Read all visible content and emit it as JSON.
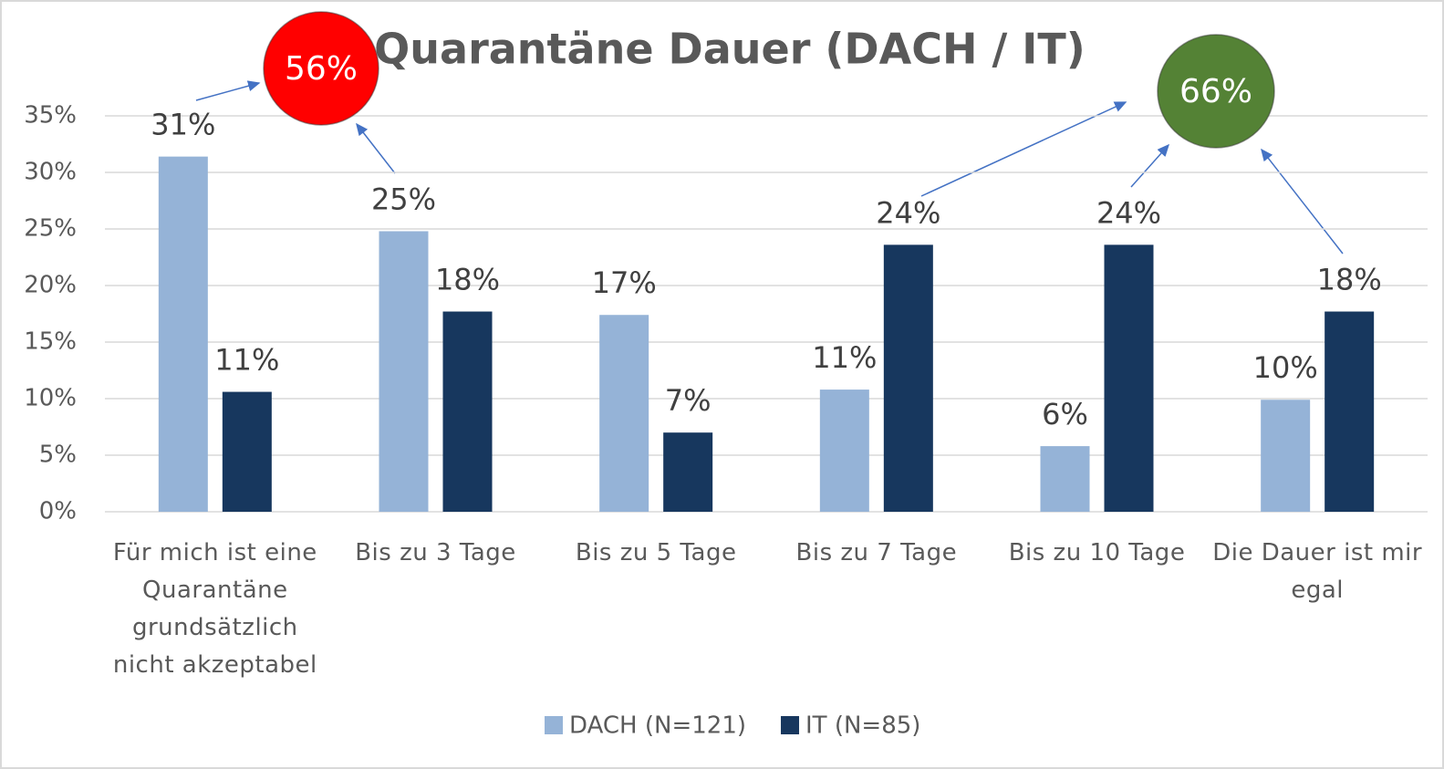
{
  "chart_data": {
    "type": "bar",
    "title": "Quarantäne Dauer (DACH / IT)",
    "categories": [
      "Für mich ist eine Quarantäne grundsätzlich nicht akzeptabel",
      "Bis zu 3 Tage",
      "Bis zu 5 Tage",
      "Bis zu 7 Tage",
      "Bis zu 10 Tage",
      "Die Dauer ist mir egal"
    ],
    "series": [
      {
        "name": "DACH (N=121)",
        "color": "#95b3d7",
        "values": [
          31.4,
          24.8,
          17.4,
          10.8,
          5.8,
          9.9
        ],
        "value_labels": [
          "31%",
          "25%",
          "17%",
          "11%",
          "6%",
          "10%"
        ]
      },
      {
        "name": "IT (N=85)",
        "color": "#17375e",
        "values": [
          10.6,
          17.7,
          7.0,
          23.6,
          23.6,
          17.7
        ],
        "value_labels": [
          "11%",
          "18%",
          "7%",
          "24%",
          "24%",
          "18%"
        ]
      }
    ],
    "ylim": [
      0,
      35
    ],
    "yticks": [
      {
        "value": 0,
        "label": "0%"
      },
      {
        "value": 5,
        "label": "5%"
      },
      {
        "value": 10,
        "label": "10%"
      },
      {
        "value": 15,
        "label": "15%"
      },
      {
        "value": 20,
        "label": "20%"
      },
      {
        "value": 25,
        "label": "25%"
      },
      {
        "value": 30,
        "label": "30%"
      },
      {
        "value": 35,
        "label": "35%"
      }
    ],
    "grid": true,
    "legend": "bottom",
    "annotations": [
      {
        "text": "56%",
        "color": "#ff0000"
      },
      {
        "text": "66%",
        "color": "#548235"
      }
    ]
  }
}
